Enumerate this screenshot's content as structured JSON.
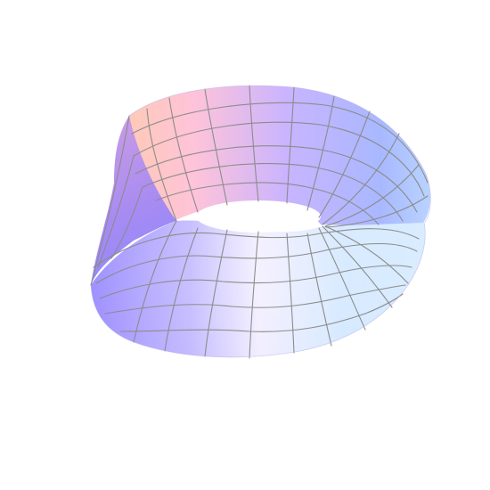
{
  "figure": {
    "subject": "mobius-strip",
    "background": "#ffffff",
    "mesh_color": "#8c8c8c",
    "surface_colors": [
      "#ffc8b4",
      "#ffbcd8",
      "#cbb2ff",
      "#a9a6ff",
      "#b6d4ff",
      "#d6ecff",
      "#f0e9ff"
    ]
  }
}
